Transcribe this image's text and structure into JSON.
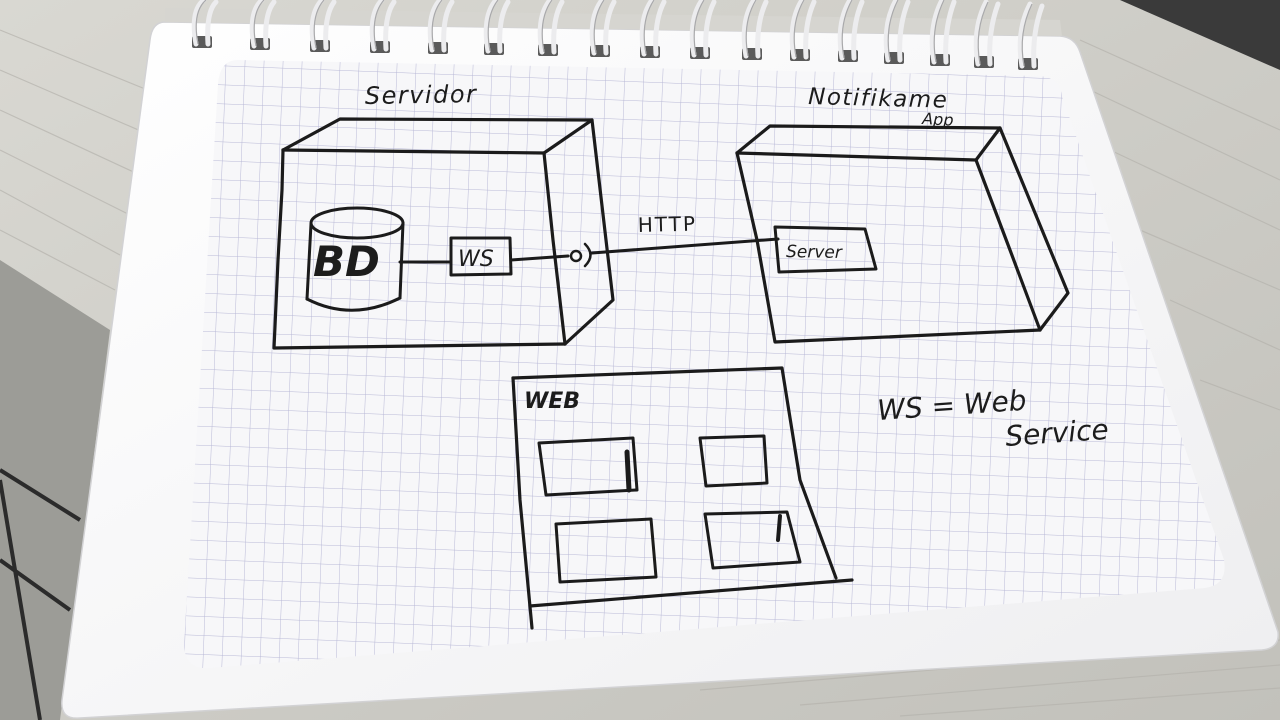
{
  "labels": {
    "servidor": "Servidor",
    "notifikame": "Notifikame",
    "app": "App",
    "bd": "BD",
    "ws": "WS",
    "http": "HTTP",
    "server": "Server",
    "web": "WEB",
    "legend_line1": "WS = Web",
    "legend_line2": "Service"
  },
  "colors": {
    "paper": "#f4f4f6",
    "grid": "#b9b9d6",
    "ink": "#1b1b1b",
    "table": "#cfcdc7",
    "spiral": "#e9e9ea"
  }
}
